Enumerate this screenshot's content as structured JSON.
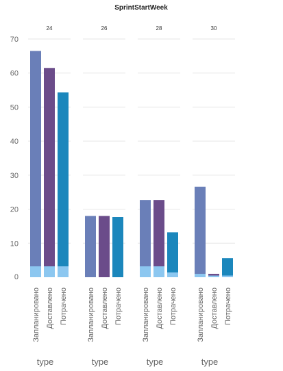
{
  "chart_data": {
    "type": "bar",
    "title": "SprintStartWeek",
    "facets": [
      "24",
      "26",
      "28",
      "30"
    ],
    "categories": [
      "Запланировано",
      "Доставлено",
      "Потрачено"
    ],
    "xlabel": "type",
    "ylabel": "",
    "ylim": [
      0,
      70
    ],
    "yticks": [
      0,
      10,
      20,
      30,
      40,
      50,
      60,
      70
    ],
    "grid": true,
    "colors": {
      "Запланировано": "#6a7fb8",
      "Доставлено": "#6b4c8a",
      "Потрачено": "#1b87bc",
      "overlay": "#8cc7f0"
    },
    "values": [
      [
        66.5,
        61.5,
        54.3
      ],
      [
        18.0,
        18.0,
        17.7
      ],
      [
        22.7,
        22.7,
        13.2
      ],
      [
        26.6,
        1.0,
        5.6
      ]
    ],
    "overlay_values": [
      [
        3.2,
        3.2,
        3.2
      ],
      [
        0,
        0,
        0
      ],
      [
        3.2,
        3.2,
        1.4
      ],
      [
        1.0,
        0.5,
        0.5
      ]
    ]
  }
}
